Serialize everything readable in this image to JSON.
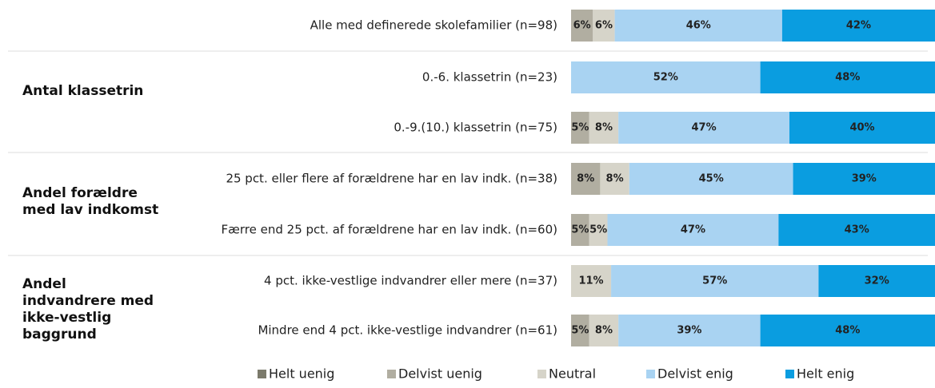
{
  "chart_data": {
    "type": "stacked-bar-horizontal",
    "categories": [
      "Alle med definerede skolefamilier (n=98)",
      "0.-6. klassetrin (n=23)",
      "0.-9.(10.) klassetrin (n=75)",
      "25 pct. eller flere af forældrene har en lav indk. (n=38)",
      "Færre end 25 pct. af forældrene har en lav indk. (n=60)",
      "4 pct. ikke-vestlige indvandrer eller mere (n=37)",
      "Mindre end 4 pct. ikke-vestlige indvandrer (n=61)"
    ],
    "groups": [
      "Antal klassetrin",
      "Andel forældre med lav indkomst",
      "Andel indvandrere med ikke-vestlig baggrund"
    ],
    "xlim": [
      0,
      100
    ],
    "series": [
      {
        "name": "Helt uenig",
        "color": "#7b7a6b",
        "values": [
          0,
          0,
          0,
          0,
          0,
          0,
          0
        ],
        "value_labels": [
          null,
          null,
          null,
          null,
          null,
          null,
          null
        ]
      },
      {
        "name": "Delvist uenig",
        "color": "#b1aea1",
        "values": [
          6,
          0,
          5,
          8,
          5,
          0,
          5
        ],
        "value_labels": [
          "6%",
          null,
          "5%",
          "8%",
          "5%",
          null,
          "5%"
        ]
      },
      {
        "name": "Neutral",
        "color": "#d6d4c9",
        "values": [
          6,
          0,
          8,
          8,
          5,
          11,
          8
        ],
        "value_labels": [
          "6%",
          null,
          "8%",
          "8%",
          "5%",
          "11%",
          "8%"
        ]
      },
      {
        "name": "Delvist enig",
        "color": "#a9d3f2",
        "values": [
          46,
          52,
          47,
          45,
          47,
          57,
          39
        ],
        "value_labels": [
          "46%",
          "52%",
          "47%",
          "45%",
          "47%",
          "57%",
          "39%"
        ]
      },
      {
        "name": "Helt enig",
        "color": "#0a9de0",
        "values": [
          42,
          48,
          40,
          39,
          43,
          32,
          48
        ],
        "value_labels": [
          "42%",
          "48%",
          "40%",
          "39%",
          "43%",
          "32%",
          "48%"
        ]
      }
    ],
    "legend": "bottom"
  }
}
